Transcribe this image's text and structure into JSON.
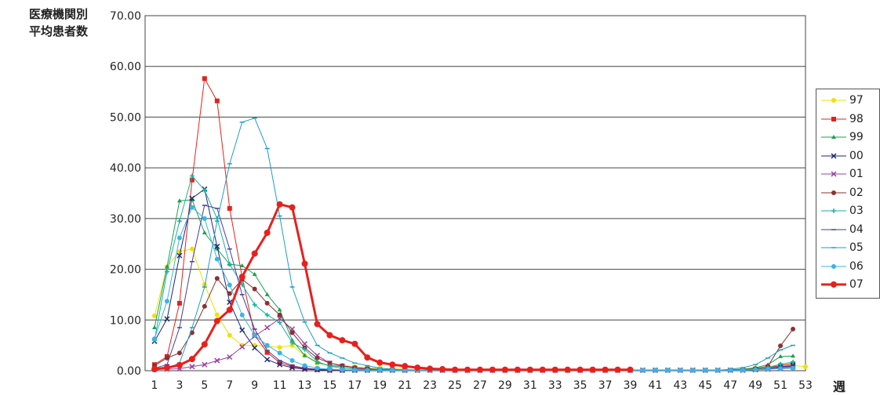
{
  "chart_data": {
    "type": "line",
    "ylabel": "医療機関別\n平均患者数",
    "xlabel": "週",
    "ylim": [
      0,
      70
    ],
    "yticks": [
      "0.00",
      "10.00",
      "20.00",
      "30.00",
      "40.00",
      "50.00",
      "60.00",
      "70.00"
    ],
    "xlim": [
      1,
      53
    ],
    "xticks": [
      "1",
      "3",
      "5",
      "7",
      "9",
      "11",
      "13",
      "15",
      "17",
      "19",
      "21",
      "23",
      "25",
      "27",
      "29",
      "31",
      "33",
      "35",
      "37",
      "39",
      "41",
      "43",
      "45",
      "47",
      "49",
      "51",
      "53"
    ],
    "grid": "horizontal",
    "legend": "right",
    "series": [
      {
        "name": "97",
        "color": "#f2e000",
        "marker": "circle",
        "width": 1,
        "values": [
          10.8,
          20.5,
          23.5,
          24.0,
          17.0,
          11.0,
          7.0,
          5.0,
          5.0,
          4.8,
          4.6,
          5.0,
          3.0,
          1.5,
          1.0,
          1.0,
          0.8,
          0.6,
          0.5,
          0.4,
          0.3,
          0.2,
          0.1,
          0.1,
          0.1,
          0.1,
          0.1,
          0.1,
          0.1,
          0.1,
          0.1,
          0.1,
          0.1,
          0.1,
          0.1,
          0.1,
          0.1,
          0.1,
          0.1,
          0.1,
          0.1,
          0.1,
          0.1,
          0.1,
          0.1,
          0.1,
          0.2,
          0.3,
          0.5,
          0.8,
          1.2,
          1.0,
          0.8
        ]
      },
      {
        "name": "98",
        "color": "#e8201c",
        "marker": "square",
        "width": 1,
        "values": [
          1.2,
          2.8,
          13.3,
          37.6,
          57.6,
          53.2,
          32.0,
          18.5,
          7.0,
          3.6,
          1.6,
          0.8,
          0.4,
          0.2,
          0.1,
          0.1,
          0.1,
          0.1,
          0.1,
          0.1,
          0.1,
          0.1,
          0.1,
          0.1,
          0.1,
          0.1,
          0.1,
          0.1,
          0.1,
          0.1,
          0.1,
          0.1,
          0.1,
          0.1,
          0.1,
          0.1,
          0.1,
          0.1,
          0.1,
          null,
          null,
          null,
          null,
          null,
          null,
          null,
          null,
          null,
          0.3,
          0.6,
          1.0,
          1.4,
          null
        ]
      },
      {
        "name": "99",
        "color": "#1aa050",
        "marker": "triangle",
        "width": 1,
        "values": [
          8.5,
          20.5,
          33.5,
          33.7,
          27.2,
          24.0,
          21.0,
          20.7,
          19.0,
          15.0,
          12.0,
          6.0,
          3.0,
          1.6,
          1.0,
          0.8,
          0.6,
          0.4,
          0.3,
          0.2,
          0.1,
          0.1,
          0.1,
          0.1,
          0.1,
          0.1,
          0.1,
          0.1,
          0.1,
          0.1,
          0.1,
          0.1,
          0.1,
          0.1,
          0.1,
          0.1,
          0.1,
          0.1,
          0.1,
          0.1,
          0.1,
          0.1,
          0.1,
          0.1,
          0.1,
          0.1,
          0.2,
          0.3,
          0.6,
          1.2,
          2.8,
          2.9,
          null
        ]
      },
      {
        "name": "00",
        "color": "#1c2a7a",
        "marker": "x",
        "width": 1,
        "values": [
          5.8,
          10.2,
          22.7,
          34.0,
          35.8,
          24.5,
          13.5,
          8.0,
          4.5,
          2.2,
          1.2,
          0.6,
          0.3,
          0.2,
          0.1,
          0.1,
          0.1,
          0.1,
          0.1,
          0.1,
          0.1,
          0.1,
          0.1,
          0.1,
          0.1,
          0.1,
          0.1,
          0.1,
          0.1,
          0.1,
          0.1,
          0.1,
          0.1,
          0.1,
          0.1,
          0.1,
          0.1,
          0.1,
          0.1,
          0.1,
          0.1,
          0.1,
          0.1,
          0.1,
          0.1,
          0.1,
          0.1,
          0.1,
          0.2,
          0.4,
          0.8,
          1.0,
          null
        ]
      },
      {
        "name": "01",
        "color": "#9b3fa5",
        "marker": "x",
        "width": 1,
        "values": [
          0.3,
          0.3,
          0.4,
          0.8,
          1.2,
          2.0,
          2.7,
          4.7,
          6.8,
          8.5,
          10.3,
          8.2,
          5.3,
          3.0,
          1.5,
          0.9,
          0.5,
          0.3,
          0.2,
          0.1,
          0.1,
          0.1,
          0.1,
          0.1,
          0.1,
          0.1,
          0.1,
          0.1,
          0.1,
          0.1,
          0.1,
          0.1,
          0.1,
          0.1,
          0.1,
          0.1,
          0.1,
          0.1,
          0.1,
          0.1,
          0.1,
          0.1,
          0.1,
          0.1,
          0.1,
          0.1,
          0.1,
          0.1,
          0.2,
          0.3,
          0.5,
          0.7,
          null
        ]
      },
      {
        "name": "02",
        "color": "#8b3232",
        "marker": "circle",
        "width": 1,
        "values": [
          1.0,
          2.5,
          3.5,
          7.5,
          12.7,
          18.2,
          15.2,
          18.0,
          16.1,
          13.3,
          11.0,
          7.5,
          4.5,
          2.5,
          1.5,
          1.0,
          0.6,
          0.4,
          0.2,
          0.1,
          0.1,
          0.1,
          0.1,
          0.1,
          0.1,
          0.1,
          0.1,
          0.1,
          0.1,
          0.1,
          0.1,
          0.1,
          0.1,
          0.1,
          0.1,
          0.1,
          0.1,
          0.1,
          0.1,
          0.1,
          0.1,
          0.1,
          0.1,
          0.1,
          0.1,
          0.1,
          0.1,
          0.2,
          0.4,
          0.9,
          4.9,
          8.2,
          null
        ]
      },
      {
        "name": "03",
        "color": "#16b3a0",
        "marker": "plus",
        "width": 1,
        "values": [
          6.0,
          19.5,
          29.5,
          38.4,
          35.6,
          30.0,
          21.0,
          17.0,
          13.0,
          11.0,
          9.5,
          5.5,
          4.2,
          1.8,
          0.9,
          0.5,
          0.3,
          0.2,
          0.1,
          0.1,
          0.1,
          0.1,
          0.1,
          0.1,
          0.1,
          0.1,
          0.1,
          0.1,
          0.1,
          0.1,
          0.1,
          0.1,
          0.1,
          0.1,
          0.1,
          0.1,
          0.1,
          0.1,
          0.1,
          0.1,
          0.1,
          0.1,
          0.1,
          0.1,
          0.1,
          0.1,
          0.1,
          0.2,
          0.3,
          0.6,
          1.3,
          1.7,
          null
        ]
      },
      {
        "name": "04",
        "color": "#463ea3",
        "marker": "dash",
        "width": 1,
        "values": [
          0.5,
          1.2,
          8.5,
          21.5,
          32.6,
          32.0,
          24.0,
          15.0,
          8.2,
          4.0,
          2.0,
          1.0,
          0.5,
          0.3,
          0.2,
          0.1,
          0.1,
          0.1,
          0.1,
          0.1,
          0.1,
          0.1,
          0.1,
          0.1,
          0.1,
          0.1,
          0.1,
          0.1,
          0.1,
          0.1,
          0.1,
          0.1,
          0.1,
          0.1,
          0.1,
          0.1,
          0.1,
          0.1,
          0.1,
          0.1,
          0.1,
          0.1,
          0.1,
          0.1,
          0.1,
          0.1,
          0.1,
          0.1,
          0.2,
          0.4,
          0.7,
          0.9,
          null
        ]
      },
      {
        "name": "05",
        "color": "#1e9fc8",
        "marker": "dash",
        "width": 1,
        "values": [
          0.2,
          0.5,
          1.5,
          8.5,
          16.5,
          29.5,
          40.8,
          49.0,
          49.8,
          43.8,
          30.5,
          16.5,
          9.6,
          5.0,
          3.5,
          2.5,
          1.5,
          1.0,
          0.5,
          0.3,
          0.2,
          0.1,
          0.1,
          0.1,
          0.1,
          0.1,
          0.1,
          0.1,
          0.1,
          0.1,
          0.1,
          0.1,
          0.1,
          0.1,
          0.1,
          0.1,
          0.1,
          0.1,
          0.1,
          0.1,
          0.1,
          0.1,
          0.1,
          0.1,
          0.1,
          0.1,
          0.3,
          0.6,
          1.2,
          2.5,
          4.1,
          5.0,
          null
        ]
      },
      {
        "name": "06",
        "color": "#3ab4e6",
        "marker": "circle",
        "width": 1,
        "values": [
          6.3,
          13.7,
          26.2,
          32.2,
          30.0,
          22.0,
          16.9,
          11.0,
          7.0,
          5.0,
          3.5,
          2.0,
          1.0,
          0.5,
          0.3,
          0.2,
          0.1,
          0.1,
          0.1,
          0.1,
          0.1,
          0.1,
          0.1,
          0.1,
          0.1,
          0.1,
          0.1,
          0.1,
          0.1,
          0.1,
          0.1,
          0.1,
          0.1,
          0.1,
          0.1,
          0.1,
          0.1,
          0.1,
          0.1,
          0.1,
          0.1,
          0.1,
          0.1,
          0.1,
          0.1,
          0.1,
          0.1,
          0.1,
          0.2,
          0.3,
          0.4,
          0.5,
          null
        ]
      },
      {
        "name": "07",
        "color": "#e8201c",
        "marker": "circle",
        "width": 3,
        "values": [
          0.3,
          0.6,
          1.1,
          2.3,
          5.2,
          9.8,
          12.0,
          18.5,
          23.1,
          27.2,
          32.8,
          32.2,
          21.1,
          9.2,
          7.0,
          6.0,
          5.3,
          2.6,
          1.6,
          1.2,
          0.9,
          0.6,
          0.4,
          0.3,
          0.2,
          0.2,
          0.2,
          0.2,
          0.2,
          0.2,
          0.2,
          0.2,
          0.2,
          0.2,
          0.2,
          0.2,
          0.2,
          0.2,
          0.2,
          null,
          null,
          null,
          null,
          null,
          null,
          null,
          null,
          null,
          null,
          null,
          null,
          null,
          null
        ]
      }
    ]
  }
}
